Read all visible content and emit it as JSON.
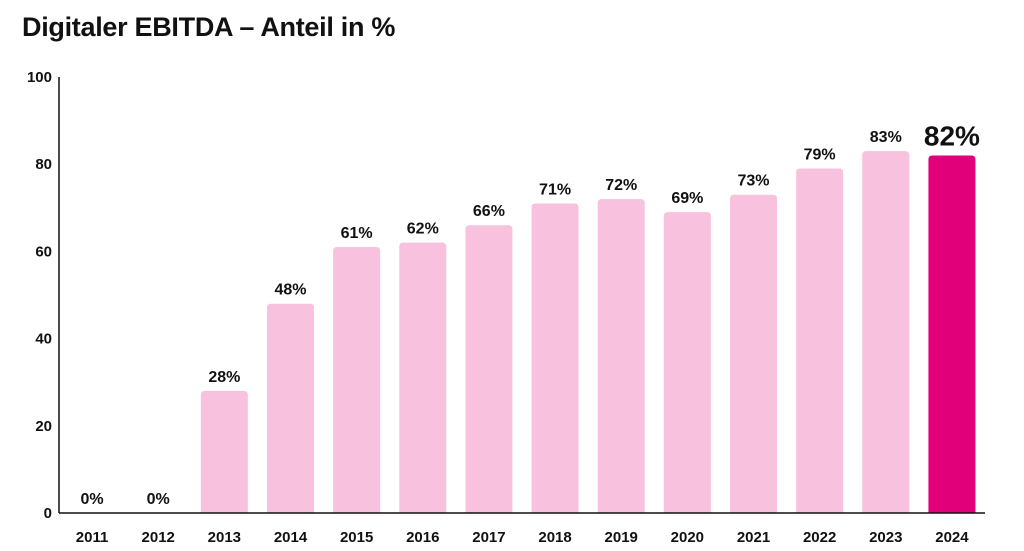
{
  "chart_data": {
    "type": "bar",
    "title": "Digitaler EBITDA – Anteil in %",
    "xlabel": "",
    "ylabel": "",
    "ylim": [
      0,
      100
    ],
    "yticks": [
      0,
      20,
      40,
      60,
      80,
      100
    ],
    "grid": false,
    "legend": "none",
    "categories": [
      "2011",
      "2012",
      "2013",
      "2014",
      "2015",
      "2016",
      "2017",
      "2018",
      "2019",
      "2020",
      "2021",
      "2022",
      "2023",
      "2024"
    ],
    "values": [
      0,
      0,
      28,
      48,
      61,
      62,
      66,
      71,
      72,
      69,
      73,
      79,
      83,
      82
    ],
    "data_labels": [
      "0%",
      "0%",
      "28%",
      "48%",
      "61%",
      "62%",
      "66%",
      "71%",
      "72%",
      "69%",
      "73%",
      "79%",
      "83%",
      "82%"
    ],
    "highlight_index": 13,
    "colors": {
      "bar": "#f8c1de",
      "highlight": "#e2007a",
      "axis": "#111111"
    }
  }
}
